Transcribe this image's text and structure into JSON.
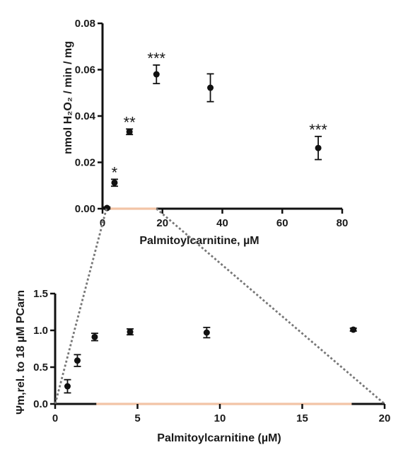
{
  "chart_data": [
    {
      "type": "scatter",
      "xlabel": "Palmitoylcarnitine, µM",
      "ylabel": "nmol H₂O₂ / min / mg",
      "xlim": [
        0,
        80
      ],
      "ylim": [
        0,
        0.08
      ],
      "xticks": [
        0,
        20,
        40,
        60,
        80
      ],
      "yticks": [
        0.0,
        0.02,
        0.04,
        0.06,
        0.08
      ],
      "xtick_labels": [
        "0",
        "20",
        "40",
        "60",
        "80"
      ],
      "ytick_labels": [
        "0.00",
        "0.02",
        "0.04",
        "0.06",
        "0.08"
      ],
      "grid": false,
      "points": [
        {
          "x": 1.5,
          "y": 0.0003,
          "err": 0.0004,
          "sig": ""
        },
        {
          "x": 4,
          "y": 0.0112,
          "err": 0.0015,
          "sig": "*"
        },
        {
          "x": 9,
          "y": 0.0332,
          "err": 0.0012,
          "sig": "**"
        },
        {
          "x": 18,
          "y": 0.058,
          "err": 0.004,
          "sig": "***"
        },
        {
          "x": 36,
          "y": 0.0522,
          "err": 0.006,
          "sig": ""
        },
        {
          "x": 72,
          "y": 0.0262,
          "err": 0.005,
          "sig": "***"
        }
      ],
      "highlight_range": [
        2.25,
        18
      ],
      "highlight_color": "#f2c4a6"
    },
    {
      "type": "scatter",
      "xlabel": "Palmitoylcarnitine (µM)",
      "ylabel": "Ψm,rel. to 18 µM PCarn",
      "xlim": [
        0,
        20
      ],
      "ylim": [
        0,
        1.5
      ],
      "xticks": [
        0,
        5,
        10,
        15,
        20
      ],
      "yticks": [
        0.0,
        0.5,
        1.0,
        1.5
      ],
      "xtick_labels": [
        "0",
        "5",
        "10",
        "15",
        "20"
      ],
      "ytick_labels": [
        "0.0",
        "0.5",
        "1.0",
        "1.5"
      ],
      "grid": false,
      "points": [
        {
          "x": 0.75,
          "y": 0.24,
          "err": 0.09
        },
        {
          "x": 1.35,
          "y": 0.59,
          "err": 0.08
        },
        {
          "x": 2.4,
          "y": 0.91,
          "err": 0.05
        },
        {
          "x": 4.55,
          "y": 0.98,
          "err": 0.04
        },
        {
          "x": 9.2,
          "y": 0.97,
          "err": 0.07
        },
        {
          "x": 18.1,
          "y": 1.01,
          "err": 0.02
        }
      ],
      "highlight_range": [
        2.5,
        18
      ],
      "highlight_color": "#f2c4a6"
    }
  ]
}
